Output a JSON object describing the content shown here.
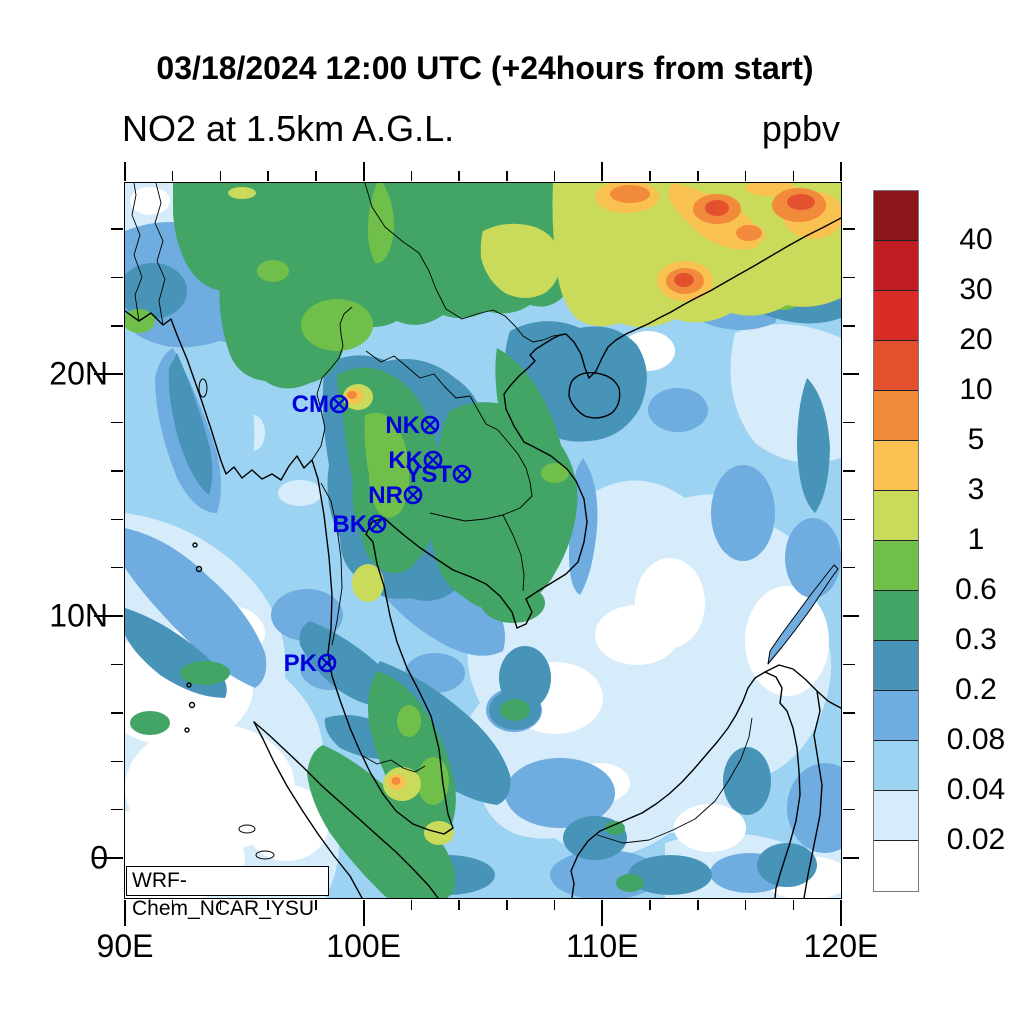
{
  "header": {
    "title": "03/18/2024 12:00 UTC (+24hours from start)",
    "subtitle": "NO2 at 1.5km A.G.L.",
    "units_label": "ppbv"
  },
  "model_label": "WRF-Chem_NCAR_YSU",
  "chart_data": {
    "type": "heatmap",
    "subtype": "filled-contour-map",
    "title": "NO2 at 1.5km A.G.L.",
    "valid_time": "03/18/2024 12:00 UTC (+24hours from start)",
    "variable": "NO2",
    "level": "1.5km A.G.L.",
    "units": "ppbv",
    "model": "WRF-Chem_NCAR_YSU",
    "extent": {
      "lon": [
        90,
        120
      ],
      "lat_top": 27.9,
      "lat_bottom": -1.65
    },
    "axes": {
      "x_labels": [
        {
          "lon": 90,
          "text": "90E"
        },
        {
          "lon": 100,
          "text": "100E"
        },
        {
          "lon": 110,
          "text": "110E"
        },
        {
          "lon": 120,
          "text": "120E"
        }
      ],
      "y_labels": [
        {
          "lat": 20,
          "text": "20N"
        },
        {
          "lat": 10,
          "text": "10N"
        },
        {
          "lat": 0,
          "text": "0"
        }
      ],
      "x_major": [
        90,
        100,
        110,
        120
      ],
      "x_minor": [
        92,
        94,
        96,
        98,
        102,
        104,
        106,
        108,
        112,
        114,
        116,
        118
      ],
      "y_major": [
        20,
        10,
        0
      ],
      "y_minor": [
        26,
        24,
        22,
        18,
        16,
        14,
        12,
        8,
        6,
        4,
        2
      ],
      "minor_interval_deg": 2
    },
    "colorbar": {
      "units": "ppbv",
      "colors_top_to_bottom": [
        "#8d151b",
        "#bf1d23",
        "#da2c27",
        "#e4512e",
        "#f28a3c",
        "#f9c14f",
        "#cada5b",
        "#70bf4a",
        "#42a566",
        "#4894b8",
        "#6face0",
        "#9cd3f2",
        "#d6ecfa",
        "#ffffff"
      ],
      "tick_labels_top_to_bottom": [
        "40",
        "30",
        "20",
        "10",
        "5",
        "3",
        "1",
        "0.6",
        "0.3",
        "0.2",
        "0.08",
        "0.04",
        "0.02"
      ],
      "levels_ascending": [
        0.02,
        0.04,
        0.08,
        0.2,
        0.3,
        0.6,
        1,
        3,
        5,
        10,
        20,
        30,
        40
      ]
    },
    "stations": [
      {
        "label": "CM",
        "fx": 0.2989,
        "fy": 0.3091
      },
      {
        "label": "NK",
        "fx": 0.426,
        "fy": 0.3385
      },
      {
        "label": "KK",
        "fx": 0.4302,
        "fy": 0.3874
      },
      {
        "label": "YST",
        "fx": 0.4707,
        "fy": 0.407
      },
      {
        "label": "NR",
        "fx": 0.4022,
        "fy": 0.4364
      },
      {
        "label": "BK",
        "fx": 0.352,
        "fy": 0.4769
      },
      {
        "label": "PK",
        "fx": 0.2821,
        "fy": 0.6713
      }
    ],
    "station_marker": "circled-x",
    "station_color": "#0000dd",
    "high_value_region_note": "orange/red maxima in northeast corner of domain"
  }
}
